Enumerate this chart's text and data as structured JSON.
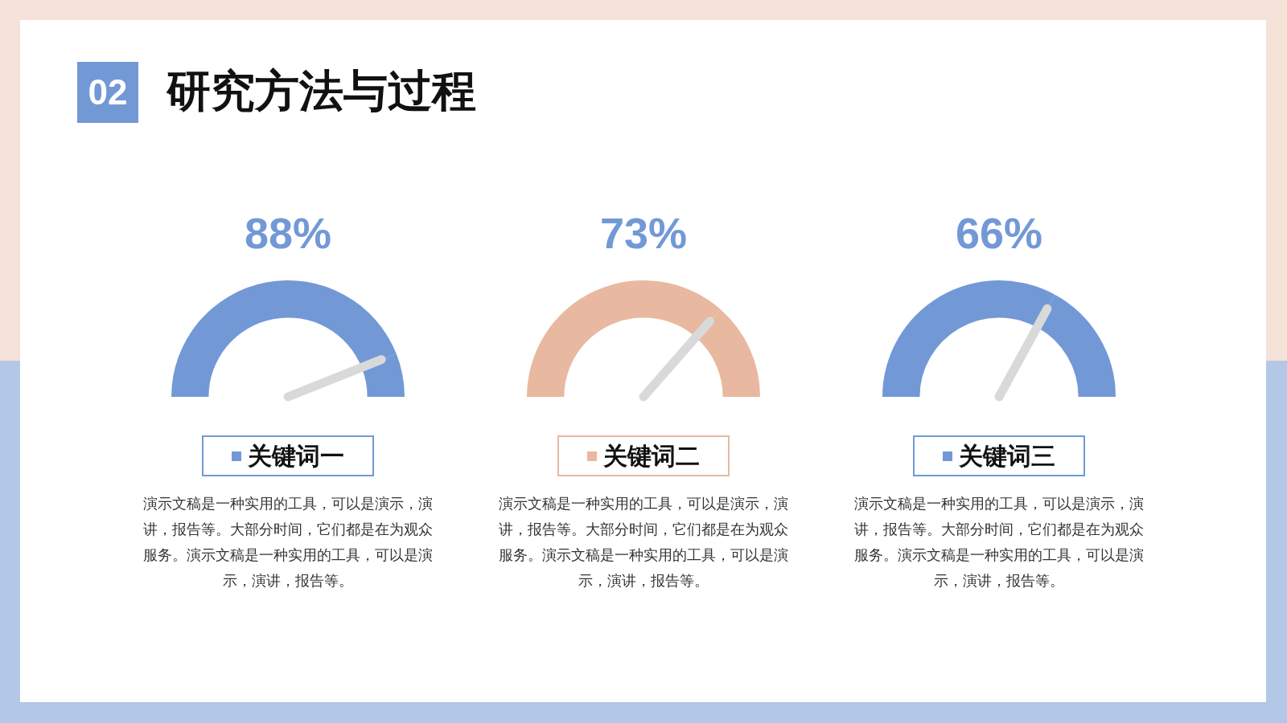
{
  "chart_data": [
    {
      "type": "other",
      "title": "研究方法与过程",
      "annotations": [
        "02"
      ]
    },
    {
      "type": "donut",
      "categories": [
        "关键词一",
        null
      ],
      "values": [
        88,
        12
      ],
      "colors": [
        "#7299d6",
        "#7299d6"
      ],
      "value_labels": [
        "88%",
        null
      ],
      "needle": "关键词一",
      "annotations": [
        "演示文稿是一种实用的工具，可以是演示，演讲，报告等。大部分时间，它们都是在为观众服务。演示文稿是一种实用的工具，可以是演示，演讲，报告等。"
      ]
    },
    {
      "type": "donut",
      "categories": [
        "关键词二",
        null
      ],
      "values": [
        73,
        27
      ],
      "colors": [
        "#e8b9a0",
        "#e8b9a0"
      ],
      "value_labels": [
        "73%",
        null
      ],
      "needle": "关键词二",
      "annotations": [
        "演示文稿是一种实用的工具，可以是演示，演讲，报告等。大部分时间，它们都是在为观众服务。演示文稿是一种实用的工具，可以是演示，演讲，报告等。"
      ]
    },
    {
      "type": "donut",
      "categories": [
        "关键词三",
        null
      ],
      "values": [
        66,
        34
      ],
      "colors": [
        "#7299d6",
        "#7299d6"
      ],
      "value_labels": [
        "66%",
        null
      ],
      "needle": "关键词三",
      "annotations": [
        "演示文稿是一种实用的工具，可以是演示，演讲，报告等。大部分时间，它们都是在为观众服务。演示文稿是一种实用的工具，可以是演示，演讲，报告等。"
      ]
    }
  ]
}
